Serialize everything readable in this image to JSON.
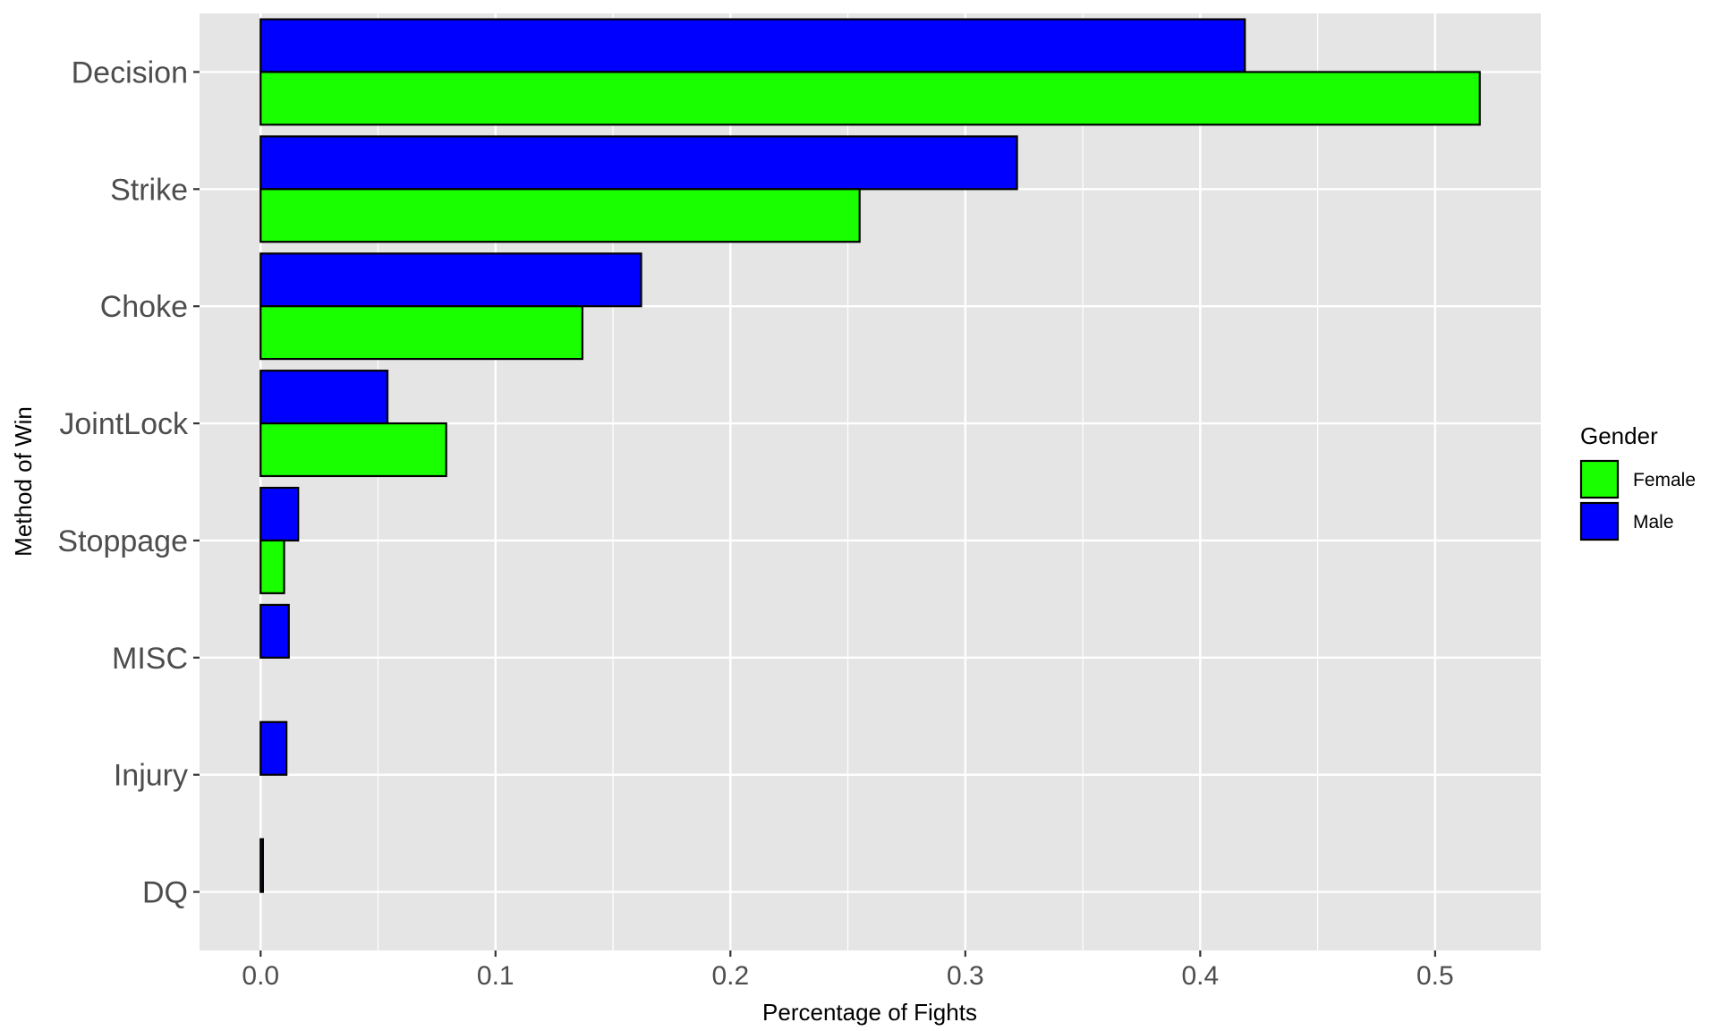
{
  "chart_data": {
    "type": "bar",
    "orientation": "horizontal",
    "categories": [
      "Decision",
      "Strike",
      "Choke",
      "JointLock",
      "Stoppage",
      "MISC",
      "Injury",
      "DQ"
    ],
    "series": [
      {
        "name": "Male",
        "color": "#0000ff",
        "values": [
          0.419,
          0.322,
          0.162,
          0.054,
          0.016,
          0.012,
          0.011,
          0.001
        ]
      },
      {
        "name": "Female",
        "color": "#1aff00",
        "values": [
          0.519,
          0.255,
          0.137,
          0.079,
          0.01,
          0,
          0,
          0
        ]
      }
    ],
    "xlabel": "Percentage of Fights",
    "ylabel": "Method of Win",
    "xlim": [
      -0.026,
      0.545
    ],
    "x_ticks": [
      "0.0",
      "0.1",
      "0.2",
      "0.3",
      "0.4",
      "0.5"
    ],
    "grid": true,
    "legend": {
      "title": "Gender",
      "position": "right",
      "entries": [
        {
          "label": "Female",
          "color": "#1aff00"
        },
        {
          "label": "Male",
          "color": "#0000ff"
        }
      ]
    },
    "panel_color": "#e5e5e5"
  }
}
